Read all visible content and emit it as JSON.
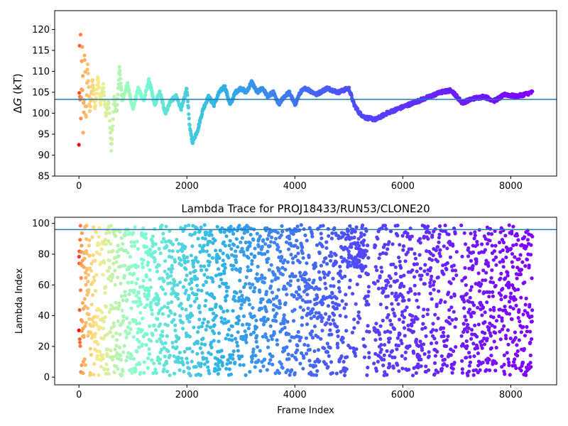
{
  "chart_data": [
    {
      "type": "scatter",
      "title": "",
      "xlabel": "",
      "ylabel_symbol": "Δ",
      "ylabel_var": "G",
      "ylabel_unit": " (kT)",
      "xlim": [
        -450,
        8850
      ],
      "ylim": [
        85,
        124.5
      ],
      "xticks": [
        0,
        2000,
        4000,
        6000,
        8000
      ],
      "yticks": [
        85,
        90,
        95,
        100,
        105,
        110,
        115,
        120
      ],
      "reference_line": 103.3,
      "color_scale": [
        "#ff0000",
        "#ff9b52",
        "#f8ea8a",
        "#7ffed0",
        "#2eb3e5",
        "#4d4efb",
        "#8000ff"
      ],
      "trend": [
        [
          0,
          90
        ],
        [
          10,
          120
        ],
        [
          20,
          90
        ],
        [
          30,
          116
        ],
        [
          40,
          96
        ],
        [
          60,
          112
        ],
        [
          80,
          99
        ],
        [
          100,
          110
        ],
        [
          130,
          98
        ],
        [
          160,
          112
        ],
        [
          200,
          100
        ],
        [
          250,
          108
        ],
        [
          300,
          101
        ],
        [
          350,
          109
        ],
        [
          400,
          102
        ],
        [
          450,
          107
        ],
        [
          500,
          99
        ],
        [
          550,
          103
        ],
        [
          600,
          91
        ],
        [
          650,
          104
        ],
        [
          700,
          100
        ],
        [
          750,
          111
        ],
        [
          800,
          103
        ],
        [
          900,
          107
        ],
        [
          1000,
          101
        ],
        [
          1100,
          106
        ],
        [
          1200,
          103
        ],
        [
          1300,
          108
        ],
        [
          1400,
          102
        ],
        [
          1500,
          105
        ],
        [
          1600,
          100
        ],
        [
          1700,
          103
        ],
        [
          1800,
          104
        ],
        [
          1900,
          101
        ],
        [
          2000,
          106
        ],
        [
          2050,
          97
        ],
        [
          2100,
          93
        ],
        [
          2200,
          96
        ],
        [
          2300,
          101
        ],
        [
          2400,
          104
        ],
        [
          2500,
          102
        ],
        [
          2600,
          105
        ],
        [
          2700,
          106.5
        ],
        [
          2800,
          102
        ],
        [
          2900,
          105
        ],
        [
          3000,
          106
        ],
        [
          3100,
          105
        ],
        [
          3200,
          107.5
        ],
        [
          3300,
          105
        ],
        [
          3400,
          106
        ],
        [
          3500,
          104
        ],
        [
          3600,
          105
        ],
        [
          3700,
          102
        ],
        [
          3800,
          104
        ],
        [
          3900,
          105
        ],
        [
          4000,
          102
        ],
        [
          4100,
          105
        ],
        [
          4200,
          106
        ],
        [
          4400,
          104.5
        ],
        [
          4600,
          106
        ],
        [
          4800,
          105
        ],
        [
          5000,
          106
        ],
        [
          5100,
          102
        ],
        [
          5200,
          100
        ],
        [
          5300,
          99
        ],
        [
          5500,
          98.5
        ],
        [
          5700,
          100
        ],
        [
          5900,
          101
        ],
        [
          6100,
          102
        ],
        [
          6300,
          103
        ],
        [
          6500,
          104
        ],
        [
          6700,
          105
        ],
        [
          6900,
          105.5
        ],
        [
          7000,
          104
        ],
        [
          7100,
          102.5
        ],
        [
          7300,
          103.5
        ],
        [
          7500,
          104
        ],
        [
          7700,
          103
        ],
        [
          7900,
          104.5
        ],
        [
          8100,
          104
        ],
        [
          8400,
          105
        ]
      ],
      "points_per_frame": 1
    },
    {
      "type": "scatter",
      "title": "Lambda Trace for PROJ18433/RUN53/CLONE20",
      "xlabel": "Frame Index",
      "ylabel": "Lambda Index",
      "xlim": [
        -450,
        8850
      ],
      "ylim": [
        -5,
        104
      ],
      "xticks": [
        0,
        2000,
        4000,
        6000,
        8000
      ],
      "yticks": [
        0,
        20,
        40,
        60,
        80,
        100
      ],
      "reference_line": 96,
      "max_frame": 8400,
      "dense_bands": [
        {
          "from": 4960,
          "to": 5320,
          "ymin": 70,
          "ymax": 99
        }
      ],
      "gaps": [
        {
          "from": 5380,
          "to": 5460
        },
        {
          "from": 7000,
          "to": 7080
        },
        {
          "from": 7740,
          "to": 7780
        }
      ]
    }
  ],
  "tick_labels_top_x": [
    "0",
    "2000",
    "4000",
    "6000",
    "8000"
  ],
  "tick_labels_top_y": [
    "85",
    "90",
    "95",
    "100",
    "105",
    "110",
    "115",
    "120"
  ],
  "tick_labels_bottom_x": [
    "0",
    "2000",
    "4000",
    "6000",
    "8000"
  ],
  "tick_labels_bottom_y": [
    "0",
    "20",
    "40",
    "60",
    "80",
    "100"
  ]
}
